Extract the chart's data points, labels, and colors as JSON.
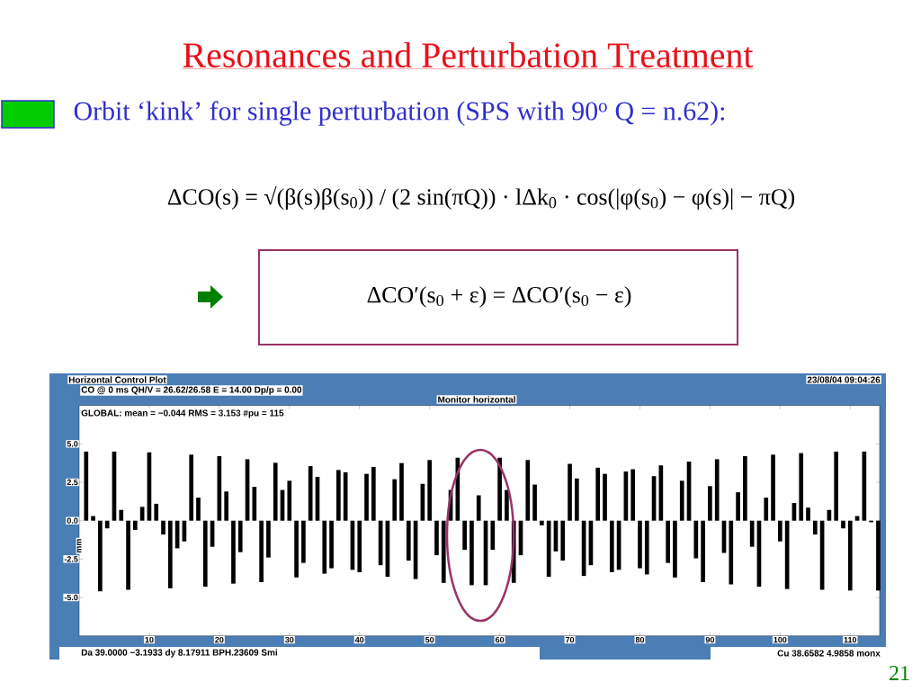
{
  "chart_data": {
    "type": "bar",
    "title": "Resonances and Perturbation Treatment",
    "subtitle": "Orbit ‘kink’ for single perturbation (SPS with 90$^{o}$ Q = n.62):",
    "ylabel": "mm",
    "x": [
      1,
      2,
      3,
      4,
      5,
      6,
      7,
      8,
      9,
      10,
      11,
      12,
      13,
      14,
      15,
      16,
      17,
      18,
      19,
      20,
      21,
      22,
      23,
      24,
      25,
      26,
      27,
      28,
      29,
      30,
      31,
      32,
      33,
      34,
      35,
      36,
      37,
      38,
      39,
      40,
      41,
      42,
      43,
      44,
      45,
      46,
      47,
      48,
      49,
      50,
      51,
      52,
      53,
      54,
      55,
      56,
      57,
      58,
      59,
      60,
      61,
      62,
      63,
      64,
      65,
      66,
      67,
      68,
      69,
      70,
      71,
      72,
      73,
      74,
      75,
      76,
      77,
      78,
      79,
      80,
      81,
      82,
      83,
      84,
      85,
      86,
      87,
      88,
      89,
      90,
      91,
      92,
      93,
      94,
      95,
      96,
      97,
      98,
      99,
      100,
      101,
      102,
      103,
      104,
      105,
      106,
      107,
      108,
      109,
      110,
      111,
      112,
      113,
      114
    ],
    "values": [
      4.5,
      0.3,
      -4.6,
      -0.5,
      4.5,
      0.7,
      -4.5,
      -0.6,
      0.9,
      4.45,
      1.1,
      -0.9,
      -4.4,
      -1.8,
      -1.35,
      4.3,
      1.5,
      -4.3,
      -1.7,
      4.2,
      1.9,
      -4.1,
      -2.05,
      4.0,
      2.2,
      -4.0,
      -2.4,
      3.77,
      2.0,
      2.6,
      -3.7,
      -2.75,
      3.55,
      2.85,
      -3.45,
      -3.1,
      3.3,
      3.15,
      -3.2,
      -3.35,
      3.05,
      3.5,
      -2.9,
      -3.65,
      2.7,
      3.75,
      -2.6,
      -3.8,
      2.4,
      3.95,
      -2.25,
      -4.05,
      2.0,
      4.1,
      -1.9,
      -4.2,
      1.65,
      -4.2,
      -1.9,
      4.1,
      2.0,
      -4.05,
      -2.25,
      3.95,
      2.35,
      -0.3,
      -3.65,
      -2.0,
      -2.6,
      3.7,
      2.75,
      -3.6,
      -2.9,
      3.45,
      3.05,
      -3.35,
      -3.2,
      3.2,
      3.35,
      -3.1,
      -3.5,
      2.9,
      3.6,
      -2.75,
      -3.7,
      2.6,
      3.85,
      -2.45,
      -4.0,
      2.25,
      4.0,
      -2.1,
      -4.15,
      1.85,
      4.2,
      -1.7,
      -4.3,
      1.5,
      4.3,
      -1.35,
      -4.45,
      1.15,
      4.4,
      0.85,
      -0.9,
      -4.5,
      0.7,
      4.5,
      -0.5,
      -4.55,
      0.3,
      4.5,
      -0.1,
      -4.55
    ],
    "color": "#000000",
    "xlim": [
      0,
      114.2
    ],
    "xticks": [
      10,
      20,
      30,
      40,
      50,
      60,
      70,
      80,
      90,
      100,
      110
    ],
    "ylim": [
      -7.5,
      7.5
    ],
    "yticks": [
      {
        "value": 5,
        "label": "5.0"
      },
      {
        "value": 2.5,
        "label": "2.5"
      },
      {
        "value": 0,
        "label": "0.0"
      },
      {
        "value": -2.5,
        "label": "-2.5"
      },
      {
        "value": -5,
        "label": "-5.0"
      }
    ],
    "annotations": [
      "ΔCO(s) = √(β(s)β(s$_{0}$)) / (2 sin(πQ)) · lΔk$_{0}$ · cos(|φ(s$_{0}$) − φ(s)| − πQ)",
      "ΔCO′(s$_{0}$ + ε) = ΔCO′(s$_{0}$ − ε)",
      "Horizontal Control Plot",
      "CO @ 0 ms QH/V = 26.62/26.58 E = 14.00 Dp/p = 0.00",
      "23/08/04 09:04:26",
      "Monitor horizontal",
      "GLOBAL: mean = −0.044 RMS = 3.153 #pu = 115",
      "Da 39.0000 −3.1933 dy 8.17911 BPH.23609 Smi",
      "Cu 38.6582 4.9858 monx",
      "21"
    ]
  }
}
